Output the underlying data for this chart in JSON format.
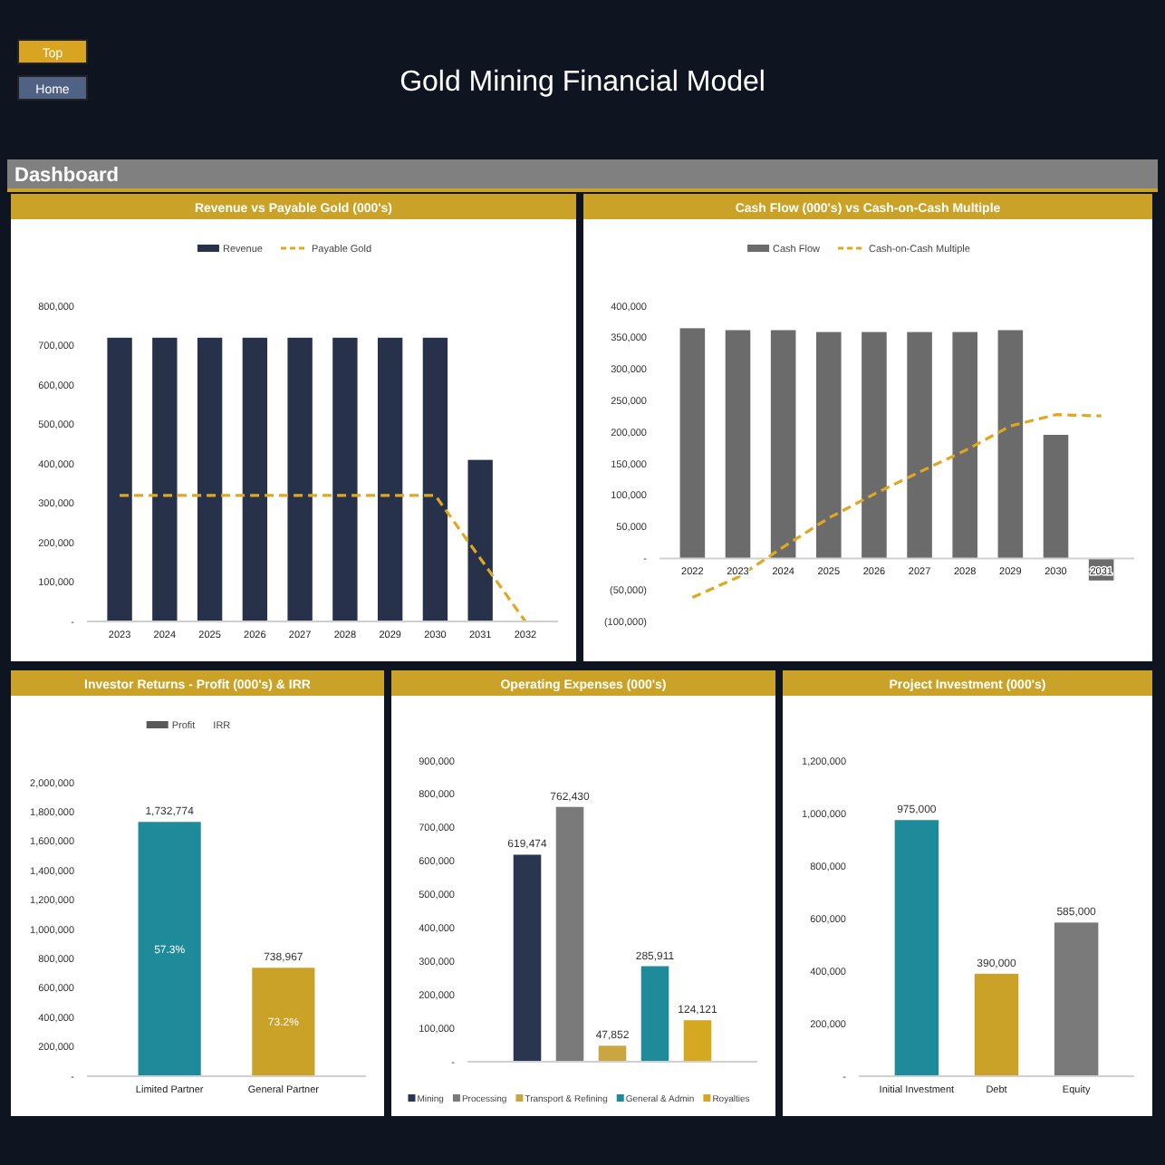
{
  "chart_data": [
    {
      "type": "other",
      "title": "Gold Mining Financial Model",
      "annotations": [
        "Top",
        "Home",
        "Dashboard"
      ]
    },
    {
      "type": "bar",
      "title": "Revenue vs Payable Gold (000's)",
      "categories": [
        "2023",
        "2024",
        "2025",
        "2026",
        "2027",
        "2028",
        "2029",
        "2030",
        "2031",
        "2032"
      ],
      "series": [
        {
          "name": "Revenue",
          "color": "#27324a",
          "values": [
            720000,
            720000,
            720000,
            720000,
            720000,
            720000,
            720000,
            720000,
            410000,
            0
          ]
        },
        {
          "name": "Payable Gold",
          "type": "line",
          "color": "#e0a820",
          "values": [
            320000,
            320000,
            320000,
            320000,
            320000,
            320000,
            320000,
            320000,
            160000,
            0
          ]
        }
      ],
      "ylim": [
        0,
        800000
      ],
      "yticks": [
        {
          "value": 0,
          "label": "-"
        },
        {
          "value": 100000,
          "label": "100,000"
        },
        {
          "value": 200000,
          "label": "200,000"
        },
        {
          "value": 300000,
          "label": "300,000"
        },
        {
          "value": 400000,
          "label": "400,000"
        },
        {
          "value": 500000,
          "label": "500,000"
        },
        {
          "value": 600000,
          "label": "600,000"
        },
        {
          "value": 700000,
          "label": "700,000"
        },
        {
          "value": 800000,
          "label": "800,000"
        }
      ],
      "legend": "top",
      "line_style": "dashed"
    },
    {
      "type": "bar",
      "title": "Cash Flow (000's) vs Cash-on-Cash Multiple",
      "categories": [
        "2022",
        "2023",
        "2024",
        "2025",
        "2026",
        "2027",
        "2028",
        "2029",
        "2030",
        "2031"
      ],
      "series": [
        {
          "name": "Cash Flow",
          "color": "#6b6b6b",
          "values": [
            365000,
            362000,
            362000,
            359000,
            359000,
            359000,
            359000,
            362000,
            196000,
            -35000
          ]
        },
        {
          "name": "Cash-on-Cash Multiple",
          "type": "line",
          "color": "#e0a820",
          "values": [
            -62000,
            -30000,
            18000,
            64000,
            102000,
            137000,
            171000,
            210000,
            228000,
            226000
          ]
        }
      ],
      "ylim": [
        -100000,
        400000
      ],
      "yticks": [
        {
          "value": -100000,
          "label": "(100,000)"
        },
        {
          "value": -50000,
          "label": "(50,000)"
        },
        {
          "value": 0,
          "label": "-"
        },
        {
          "value": 50000,
          "label": "50,000"
        },
        {
          "value": 100000,
          "label": "100,000"
        },
        {
          "value": 150000,
          "label": "150,000"
        },
        {
          "value": 200000,
          "label": "200,000"
        },
        {
          "value": 250000,
          "label": "250,000"
        },
        {
          "value": 300000,
          "label": "300,000"
        },
        {
          "value": 350000,
          "label": "350,000"
        },
        {
          "value": 400000,
          "label": "400,000"
        }
      ],
      "legend": "top",
      "line_style": "dashed"
    },
    {
      "type": "bar",
      "title": "Investor Returns - Profit (000's) & IRR",
      "categories": [
        "Limited Partner",
        "General Partner"
      ],
      "series": [
        {
          "name": "Profit",
          "color": "#595959",
          "colors": [
            "#1f8a99",
            "#c9a227"
          ],
          "values": [
            1732774,
            738967
          ],
          "value_labels": [
            "1,732,774",
            "738,967"
          ]
        },
        {
          "name": "IRR",
          "type": "scatter",
          "values": [
            null,
            null
          ]
        }
      ],
      "annotations": [
        "57.3%",
        "73.2%"
      ],
      "ylim": [
        0,
        2000000
      ],
      "yticks": [
        {
          "value": 0,
          "label": "-"
        },
        {
          "value": 200000,
          "label": "200,000"
        },
        {
          "value": 400000,
          "label": "400,000"
        },
        {
          "value": 600000,
          "label": "600,000"
        },
        {
          "value": 800000,
          "label": "800,000"
        },
        {
          "value": 1000000,
          "label": "1,000,000"
        },
        {
          "value": 1200000,
          "label": "1,200,000"
        },
        {
          "value": 1400000,
          "label": "1,400,000"
        },
        {
          "value": 1600000,
          "label": "1,600,000"
        },
        {
          "value": 1800000,
          "label": "1,800,000"
        },
        {
          "value": 2000000,
          "label": "2,000,000"
        }
      ],
      "legend": "top"
    },
    {
      "type": "bar",
      "title": "Operating Expenses (000's)",
      "categories": [
        null
      ],
      "series": [
        {
          "name": "Mining",
          "color": "#2a3550",
          "values": [
            619474
          ],
          "value_labels": [
            "619,474"
          ]
        },
        {
          "name": "Processing",
          "color": "#7a7a7a",
          "values": [
            762430
          ],
          "value_labels": [
            "762,430"
          ]
        },
        {
          "name": "Transport & Refining",
          "color": "#c9a640",
          "values": [
            47852
          ],
          "value_labels": [
            "47,852"
          ]
        },
        {
          "name": "General & Admin",
          "color": "#1f8a99",
          "values": [
            285911
          ],
          "value_labels": [
            "285,911"
          ]
        },
        {
          "name": "Royalties",
          "color": "#d4a820",
          "values": [
            124121
          ],
          "value_labels": [
            "124,121"
          ]
        }
      ],
      "ylim": [
        0,
        900000
      ],
      "yticks": [
        {
          "value": 0,
          "label": "-"
        },
        {
          "value": 100000,
          "label": "100,000"
        },
        {
          "value": 200000,
          "label": "200,000"
        },
        {
          "value": 300000,
          "label": "300,000"
        },
        {
          "value": 400000,
          "label": "400,000"
        },
        {
          "value": 500000,
          "label": "500,000"
        },
        {
          "value": 600000,
          "label": "600,000"
        },
        {
          "value": 700000,
          "label": "700,000"
        },
        {
          "value": 800000,
          "label": "800,000"
        },
        {
          "value": 900000,
          "label": "900,000"
        }
      ],
      "legend": "bottom",
      "tick_labels": "y"
    },
    {
      "type": "bar",
      "title": "Project Investment (000's)",
      "categories": [
        "Initial Investment",
        "Debt",
        "Equity"
      ],
      "values": [
        975000,
        390000,
        585000
      ],
      "value_labels": [
        "975,000",
        "390,000",
        "585,000"
      ],
      "colors": [
        "#1f8a99",
        "#c9a227",
        "#7a7a7a"
      ],
      "ylim": [
        0,
        1200000
      ],
      "yticks": [
        {
          "value": 0,
          "label": "-"
        },
        {
          "value": 200000,
          "label": "200,000"
        },
        {
          "value": 400000,
          "label": "400,000"
        },
        {
          "value": 600000,
          "label": "600,000"
        },
        {
          "value": 800000,
          "label": "800,000"
        },
        {
          "value": 1000000,
          "label": "1,000,000"
        },
        {
          "value": 1200000,
          "label": "1,200,000"
        }
      ]
    }
  ]
}
